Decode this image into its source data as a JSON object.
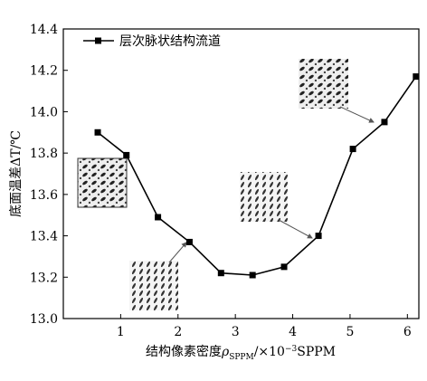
{
  "chart_data": {
    "type": "line",
    "legend": "层次脉状结构流道",
    "y_label": "底面温差ΔT/℃",
    "x_label": [
      "结构像素密度",
      "ρ",
      "SPPM",
      "/×10",
      "−3",
      "SPPM"
    ],
    "x": [
      0.6,
      1.1,
      1.65,
      2.2,
      2.75,
      3.3,
      3.85,
      4.45,
      5.05,
      5.6,
      6.15
    ],
    "values": [
      13.9,
      13.79,
      13.49,
      13.37,
      13.22,
      13.21,
      13.25,
      13.4,
      13.82,
      13.95,
      14.17
    ],
    "color": "#000000",
    "xlim": [
      0,
      6.2
    ],
    "xticks": [
      1,
      2,
      3,
      4,
      5,
      6
    ],
    "ylim": [
      13,
      14.4
    ],
    "yticks": [
      {
        "value": 13,
        "label": "13.0"
      },
      13.2,
      13.4,
      13.6,
      13.8,
      {
        "value": 14,
        "label": "14.0"
      },
      14.2,
      14.4
    ]
  }
}
